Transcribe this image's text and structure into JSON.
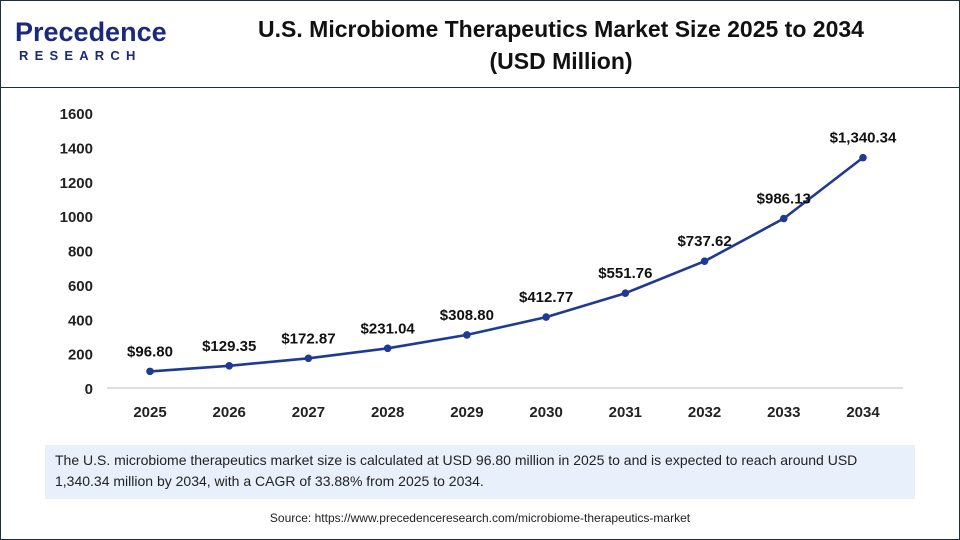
{
  "brand": {
    "name": "Precedence",
    "sub": "RESEARCH"
  },
  "header": {
    "title_line1": "U.S. Microbiome Therapeutics Market Size 2025 to 2034",
    "title_line2": "(USD Million)"
  },
  "chart_data": {
    "type": "line",
    "x": [
      "2025",
      "2026",
      "2027",
      "2028",
      "2029",
      "2030",
      "2031",
      "2032",
      "2033",
      "2034"
    ],
    "series": [
      {
        "values": [
          96.8,
          129.35,
          172.87,
          231.04,
          308.8,
          412.77,
          551.76,
          737.62,
          986.13,
          1340.34
        ]
      }
    ],
    "data_labels": [
      "$96.80",
      "$129.35",
      "$172.87",
      "$231.04",
      "$308.80",
      "$412.77",
      "$551.76",
      "$737.62",
      "$986.13",
      "$1,340.34"
    ],
    "yticks": [
      0,
      200,
      400,
      600,
      800,
      1000,
      1200,
      1400,
      1600
    ],
    "ylim": [
      0,
      1600
    ],
    "grid": false,
    "line_color": "#1f3a93",
    "marker_color": "#1f3a93"
  },
  "description": "The U.S. microbiome therapeutics market size is calculated at USD 96.80 million in 2025 to and is expected to reach around USD 1,340.34 million by 2034, with a CAGR of 33.88% from 2025 to 2034.",
  "source": "Source: https://www.precedenceresearch.com/microbiome-therapeutics-market"
}
